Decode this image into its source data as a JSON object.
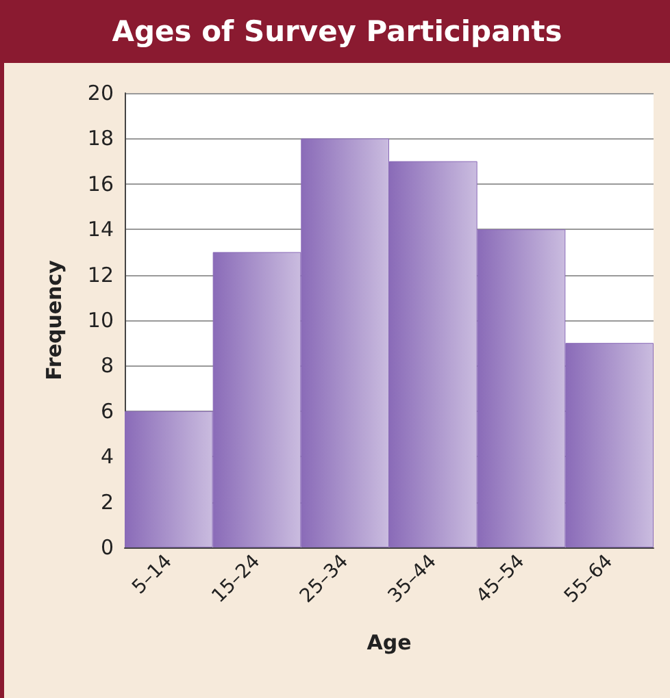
{
  "chart_data": {
    "type": "bar",
    "title": "Ages of Survey Participants",
    "xlabel": "Age",
    "ylabel": "Frequency",
    "categories": [
      "5–14",
      "15–24",
      "25–34",
      "35–44",
      "45–54",
      "55–64"
    ],
    "values": [
      6,
      13,
      18,
      17,
      14,
      9
    ],
    "color": "#8a6bb8",
    "ylim": [
      0,
      20
    ],
    "yticks": [
      0,
      2,
      4,
      6,
      8,
      10,
      12,
      14,
      16,
      18,
      20
    ],
    "grid": "y"
  }
}
